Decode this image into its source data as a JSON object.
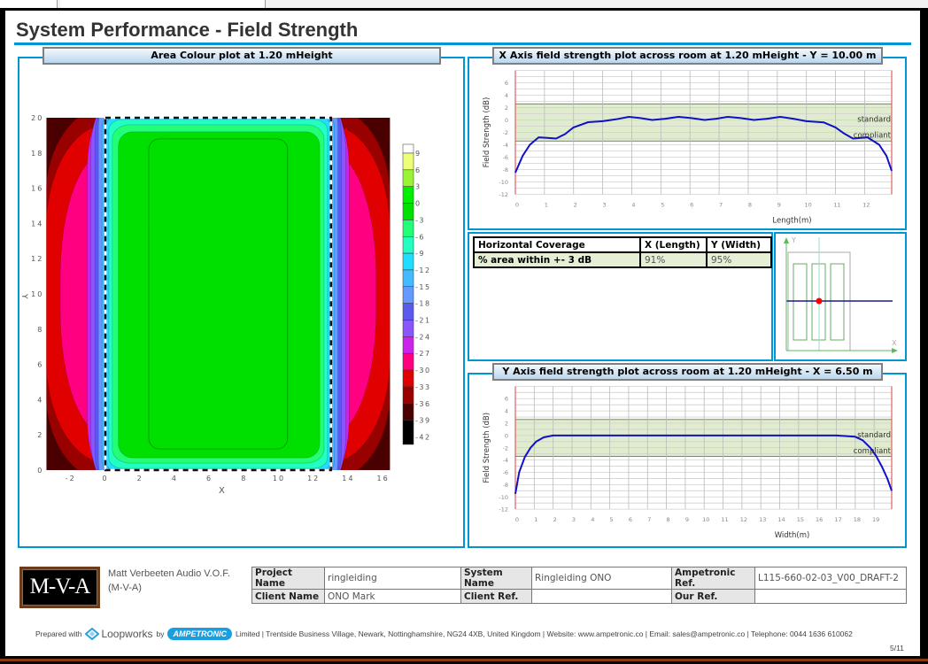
{
  "title": "System Performance - Field Strength",
  "area_plot": {
    "header": "Area Colour plot at 1.20 mHeight"
  },
  "x_plot": {
    "header": "X Axis field strength plot across room at 1.20 mHeight - Y = 10.00 m"
  },
  "y_plot": {
    "header": "Y Axis field strength plot across room at 1.20 mHeight - X = 6.50 m"
  },
  "coverage": {
    "headers": [
      "Horizontal Coverage",
      "X (Length)",
      "Y (Width)"
    ],
    "row": [
      "% area within +- 3 dB",
      "91%",
      "95%"
    ]
  },
  "diagram": {
    "x_label": "X",
    "y_label": "Y"
  },
  "chart_data": [
    {
      "type": "heatmap",
      "xlabel": "X",
      "ylabel": "Y",
      "xlim": [
        -3.4,
        16.4
      ],
      "ylim": [
        0,
        20
      ],
      "xticks": [
        "-2",
        "0",
        "2",
        "4",
        "6",
        "8",
        "10",
        "12",
        "14",
        "16"
      ],
      "yticks": [
        "0",
        "2",
        "4",
        "6",
        "8",
        "10",
        "12",
        "14",
        "16",
        "18",
        "20"
      ],
      "room": {
        "x": [
          0,
          13
        ],
        "y": [
          0,
          20
        ]
      },
      "colorbar": {
        "labels": [
          "9",
          "6",
          "3",
          "0",
          "-3",
          "-6",
          "-9",
          "-12",
          "-15",
          "-18",
          "-21",
          "-24",
          "-27",
          "-30",
          "-33",
          "-36",
          "-39",
          "-42"
        ],
        "colors": [
          "#ffffff",
          "#eeff77",
          "#99f533",
          "#00ee00",
          "#00e000",
          "#22ff77",
          "#22ffc0",
          "#22ddff",
          "#44bbff",
          "#6699ff",
          "#5a5aee",
          "#8855ff",
          "#cc22ee",
          "#ff0080",
          "#e00000",
          "#990000",
          "#4a0000",
          "#000000"
        ]
      }
    },
    {
      "type": "line",
      "xlabel": "Length(m)",
      "ylabel": "Field Strength (dB)",
      "xlim": [
        0,
        12.93
      ],
      "ylim": [
        -12,
        8
      ],
      "xticks": [
        0,
        1,
        2,
        3,
        4,
        5,
        6,
        7,
        8,
        9,
        10,
        11,
        12
      ],
      "yticks": [
        6,
        4,
        2,
        0,
        -2,
        -4,
        -6,
        -8,
        -10,
        -12
      ],
      "band": {
        "range": [
          -3.4,
          2.6
        ],
        "label1": "standard",
        "label2": "compliant"
      },
      "x": [
        0,
        0.25,
        0.5,
        0.8,
        1.1,
        1.4,
        1.7,
        2,
        2.5,
        3,
        3.45,
        3.9,
        4.3,
        4.7,
        5.15,
        5.6,
        6.05,
        6.5,
        6.9,
        7.3,
        7.75,
        8.2,
        8.65,
        9.1,
        9.55,
        10,
        10.6,
        11,
        11.3,
        11.6,
        12.1,
        12.5,
        12.75,
        12.93
      ],
      "y": [
        -8.5,
        -5.8,
        -4,
        -2.8,
        -2.9,
        -3,
        -2.3,
        -1.2,
        -0.35,
        -0.2,
        0.1,
        0.5,
        0.3,
        0,
        0.2,
        0.5,
        0.3,
        0,
        0.2,
        0.5,
        0.3,
        0,
        0.2,
        0.5,
        0.2,
        -0.2,
        -0.4,
        -1.2,
        -2.2,
        -3,
        -2.8,
        -4,
        -5.8,
        -8.2
      ]
    },
    {
      "type": "line",
      "xlabel": "Width(m)",
      "ylabel": "Field Strength (dB)",
      "xlim": [
        0,
        19.93
      ],
      "ylim": [
        -12,
        8
      ],
      "xticks": [
        0,
        1,
        2,
        3,
        4,
        5,
        6,
        7,
        8,
        9,
        10,
        11,
        12,
        13,
        14,
        15,
        16,
        17,
        18,
        19
      ],
      "yticks": [
        6,
        4,
        2,
        0,
        -2,
        -4,
        -6,
        -8,
        -10,
        -12
      ],
      "band": {
        "range": [
          -3.4,
          2.6
        ],
        "label1": "standard",
        "label2": "compliant"
      },
      "x": [
        0,
        0.2,
        0.5,
        0.8,
        1.1,
        1.5,
        2,
        3,
        10,
        17,
        18,
        18.4,
        18.8,
        19.1,
        19.4,
        19.7,
        19.93
      ],
      "y": [
        -9.5,
        -6,
        -3.5,
        -2,
        -1,
        -0.3,
        0,
        0,
        0,
        0,
        -0.2,
        -0.8,
        -2,
        -3.3,
        -5,
        -7,
        -9
      ]
    }
  ],
  "footer": {
    "logo_text": "M-V-A",
    "company_line1": "Matt Verbeeten Audio V.O.F.",
    "company_line2": "(M-V-A)",
    "table": [
      [
        "Project Name",
        "ringleiding",
        "System Name",
        "Ringleiding ONO",
        "Ampetronic Ref.",
        "L115-660-02-03_V00_DRAFT-2"
      ],
      [
        "Client Name",
        "ONO Mark",
        "Client Ref.",
        "",
        "Our Ref.",
        ""
      ]
    ],
    "prepared_with": "Prepared with",
    "loopworks": "Loopworks",
    "by": "by",
    "ampetronic": "AMPETRONIC",
    "address": "Limited | Trentside Business Village, Newark, Nottinghamshire, NG24 4XB, United Kingdom | Website: www.ampetronic.co | Email: sales@ampetronic.co | Telephone: 0044 1636 610062",
    "page": "5/11"
  },
  "colors": {
    "accent": "#0096d6",
    "curve": "#1010c8",
    "band": "#dfeccd"
  }
}
